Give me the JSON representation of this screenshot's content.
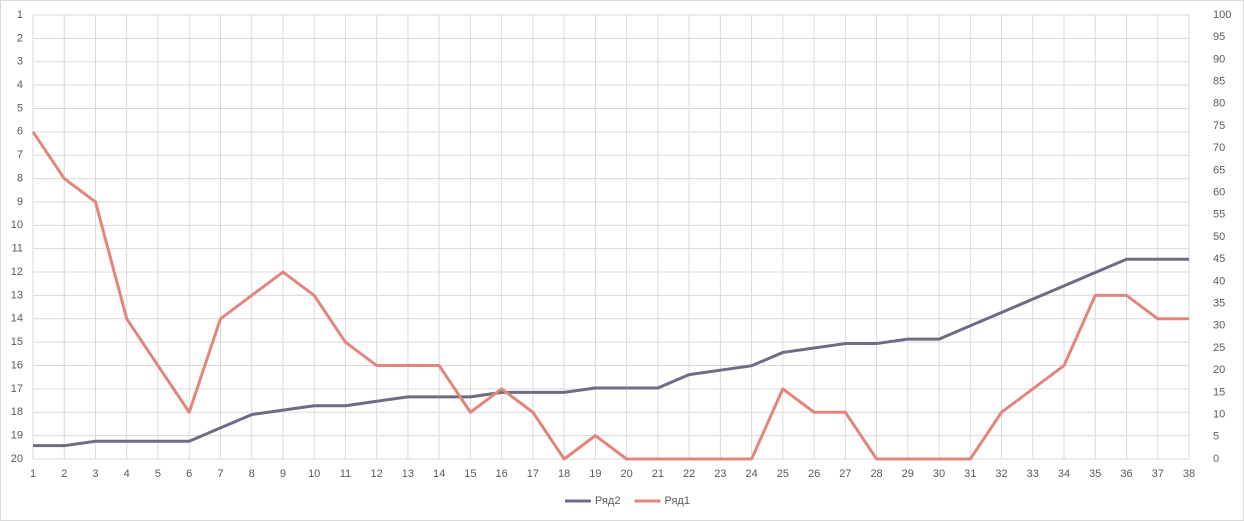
{
  "chart_data": {
    "type": "line",
    "x": [
      1,
      2,
      3,
      4,
      5,
      6,
      7,
      8,
      9,
      10,
      11,
      12,
      13,
      14,
      15,
      16,
      17,
      18,
      19,
      20,
      21,
      22,
      23,
      24,
      25,
      26,
      27,
      28,
      29,
      30,
      31,
      32,
      33,
      34,
      35,
      36,
      37,
      38
    ],
    "xlim": [
      1,
      38
    ],
    "ylim": [
      20,
      1
    ],
    "yticks": [
      1,
      2,
      3,
      4,
      5,
      6,
      7,
      8,
      9,
      10,
      11,
      12,
      13,
      14,
      15,
      16,
      17,
      18,
      19,
      20
    ],
    "y2lim": [
      0,
      100
    ],
    "y2ticks": [
      0,
      5,
      10,
      15,
      20,
      25,
      30,
      35,
      40,
      45,
      50,
      55,
      60,
      65,
      70,
      75,
      80,
      85,
      90,
      95,
      100
    ],
    "grid": true,
    "legend": "bottom",
    "series": [
      {
        "name": "Ряд2",
        "color": "#706b84",
        "axis": "y2",
        "values": [
          3,
          3,
          4,
          4,
          4,
          4,
          7,
          10,
          11,
          12,
          12,
          13,
          14,
          14,
          14,
          15,
          15,
          15,
          16,
          16,
          16,
          19,
          20,
          21,
          24,
          25,
          26,
          26,
          27,
          27,
          30,
          33,
          36,
          39,
          42,
          45,
          45,
          45
        ]
      },
      {
        "name": "Ряд1",
        "color": "#e2867b",
        "values": [
          6,
          8,
          9,
          14,
          16,
          18,
          14,
          13,
          12,
          13,
          15,
          16,
          16,
          16,
          18,
          17,
          18,
          20,
          19,
          20,
          20,
          20,
          20,
          20,
          17,
          18,
          18,
          20,
          20,
          20,
          20,
          18,
          17,
          16,
          13,
          13,
          14,
          14
        ]
      }
    ]
  }
}
